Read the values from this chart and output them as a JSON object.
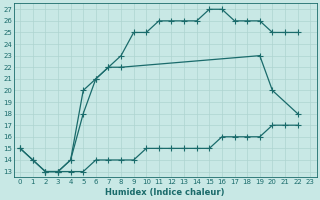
{
  "xlabel": "Humidex (Indice chaleur)",
  "background_color": "#c8e8e5",
  "line_color": "#1a6b6b",
  "grid_color": "#aed4d0",
  "xlim": [
    -0.5,
    23.5
  ],
  "ylim": [
    12.5,
    27.5
  ],
  "yticks": [
    13,
    14,
    15,
    16,
    17,
    18,
    19,
    20,
    21,
    22,
    23,
    24,
    25,
    26,
    27
  ],
  "xticks": [
    0,
    1,
    2,
    3,
    4,
    5,
    6,
    7,
    8,
    9,
    10,
    11,
    12,
    13,
    14,
    15,
    16,
    17,
    18,
    19,
    20,
    21,
    22,
    23
  ],
  "line1_x": [
    0,
    1,
    2,
    3,
    4,
    5,
    6,
    7,
    8,
    9,
    10,
    11,
    12,
    13,
    14,
    15,
    16,
    17,
    18,
    19,
    20,
    21,
    22
  ],
  "line1_y": [
    15,
    14,
    13,
    13,
    14,
    20,
    21,
    22,
    23,
    25,
    25,
    26,
    26,
    26,
    26,
    27,
    27,
    26,
    26,
    26,
    25,
    25,
    25
  ],
  "line2_x": [
    0,
    1,
    2,
    3,
    4,
    5,
    6,
    7,
    8,
    19,
    20,
    22
  ],
  "line2_y": [
    15,
    14,
    13,
    13,
    14,
    18,
    21,
    22,
    22,
    23,
    20,
    18
  ],
  "line3_x": [
    2,
    3,
    4,
    5,
    6,
    7,
    8,
    9,
    10,
    11,
    12,
    13,
    14,
    15,
    16,
    17,
    18,
    19,
    20,
    21,
    22
  ],
  "line3_y": [
    13,
    13,
    13,
    13,
    14,
    14,
    14,
    14,
    15,
    15,
    15,
    15,
    15,
    15,
    16,
    16,
    16,
    16,
    17,
    17,
    17
  ]
}
